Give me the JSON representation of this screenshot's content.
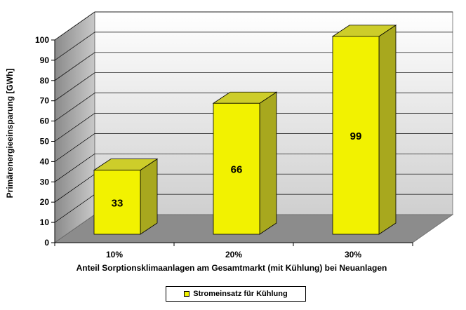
{
  "chart_data": {
    "type": "bar",
    "categories": [
      "10%",
      "20%",
      "30%"
    ],
    "series": [
      {
        "name": "Stromeinsatz für Kühlung",
        "values": [
          33,
          66,
          99
        ]
      }
    ],
    "data_labels": [
      "33",
      "66",
      "99"
    ],
    "title": "",
    "xlabel": "Anteil Sorptionsklimaanlagen am Gesamtmarkt (mit Kühlung) bei Neuanlagen",
    "ylabel": "Primärenergieeinsparung [GWh]",
    "ylim": [
      0,
      100
    ],
    "yticks": [
      "0",
      "10",
      "20",
      "30",
      "40",
      "50",
      "60",
      "70",
      "80",
      "90",
      "100"
    ],
    "grid": true,
    "legend_position": "bottom",
    "style": "3d"
  },
  "colors": {
    "bar_front": "#f2f200",
    "bar_top": "#cdcd2a",
    "bar_side": "#a8a81e",
    "wall_top": "#ffffff",
    "wall_bottom": "#8a8a8a",
    "floor": "#8c8c8c",
    "legend_swatch": "#f2f200"
  }
}
